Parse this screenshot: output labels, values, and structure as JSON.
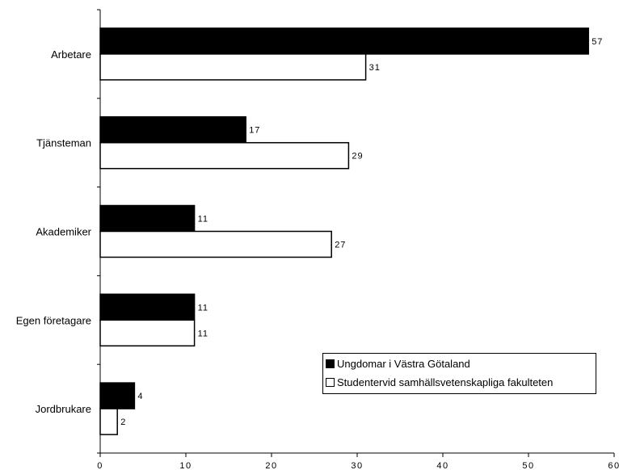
{
  "chart_data": {
    "type": "bar",
    "orientation": "horizontal",
    "categories": [
      "Arbetare",
      "Tjänsteman",
      "Akademiker",
      "Egen företagare",
      "Jordbrukare"
    ],
    "series": [
      {
        "name": "Ungdomar i Västra Götaland",
        "values": [
          57,
          17,
          11,
          11,
          4
        ],
        "color": "#000000"
      },
      {
        "name": "Studentervid samhällsvetenskapliga fakulteten",
        "values": [
          31,
          29,
          27,
          11,
          2
        ],
        "color": "#ffffff"
      }
    ],
    "xlim": [
      0,
      60
    ],
    "xticks": [
      0,
      10,
      20,
      30,
      40,
      50,
      60
    ],
    "title": "",
    "xlabel": "",
    "ylabel": "",
    "grid": false,
    "legend_position": "bottom-right",
    "data_labels": true
  }
}
